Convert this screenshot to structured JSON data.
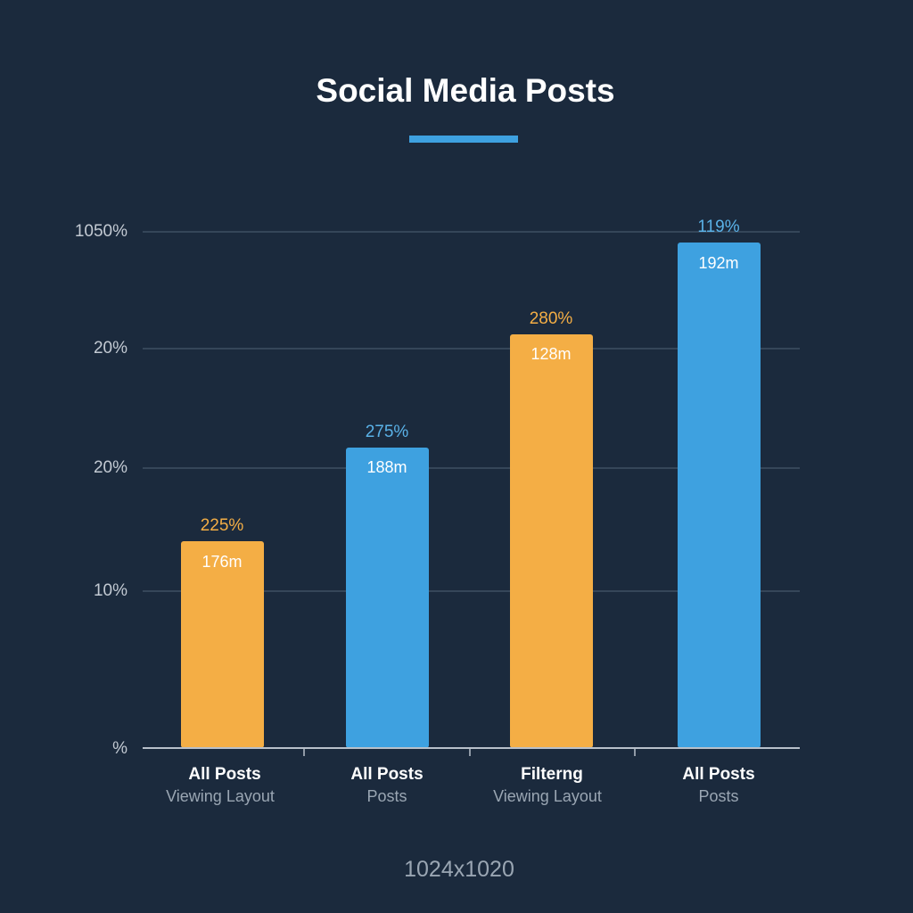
{
  "header": {
    "title": "Social Media Posts"
  },
  "axis": {
    "tick_labels": [
      "1050%",
      "20%",
      "20%",
      "10%",
      "%"
    ]
  },
  "bars": [
    {
      "value_label": "225%",
      "inner_label": "176m",
      "category": "All Posts",
      "subcategory": "Viewing Layout"
    },
    {
      "value_label": "275%",
      "inner_label": "188m",
      "category": "All Posts",
      "subcategory": "Posts"
    },
    {
      "value_label": "280%",
      "inner_label": "128m",
      "category": "Filterng",
      "subcategory": "Viewing Layout"
    },
    {
      "value_label": "119%",
      "inner_label": "192m",
      "category": "All Posts",
      "subcategory": "Posts"
    }
  ],
  "footer": {
    "text": "1024x1020"
  }
}
